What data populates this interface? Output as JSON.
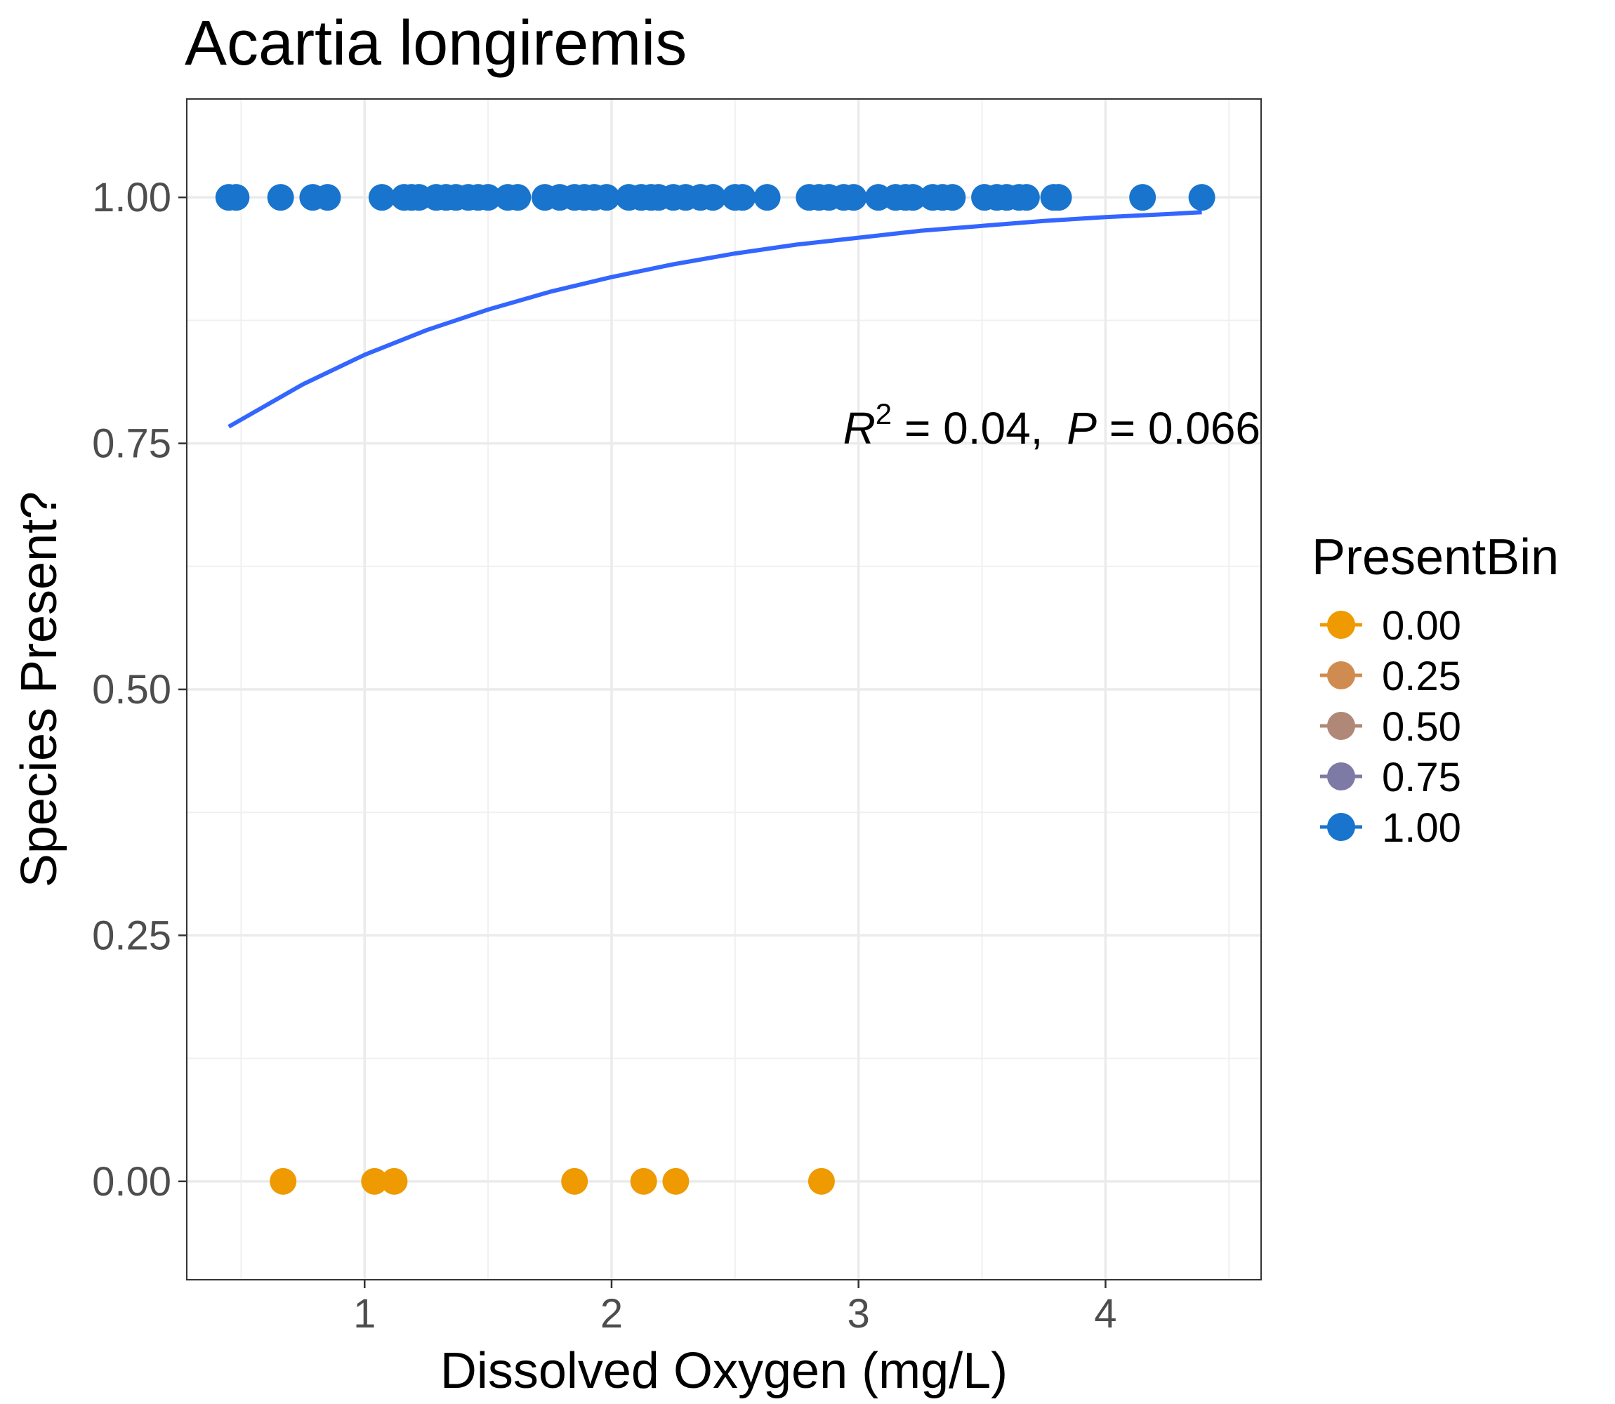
{
  "chart_data": {
    "type": "scatter",
    "title": "Acartia longiremis",
    "xlabel": "Dissolved Oxygen (mg/L)",
    "ylabel": "Species Present?",
    "xlim": [
      0.28,
      4.63
    ],
    "ylim": [
      -0.1,
      1.1
    ],
    "x_ticks": [
      1,
      2,
      3,
      4
    ],
    "x_tick_labels": [
      "1",
      "2",
      "3",
      "4"
    ],
    "y_ticks": [
      0,
      0.25,
      0.5,
      0.75,
      1.0
    ],
    "y_tick_labels": [
      "0.00",
      "0.25",
      "0.50",
      "0.75",
      "1.00"
    ],
    "grid": true,
    "legend": {
      "title": "PresentBin",
      "position": "right",
      "entries": [
        {
          "label": "0.00",
          "color": "#ee9a00"
        },
        {
          "label": "0.25",
          "color": "#d08c50"
        },
        {
          "label": "0.50",
          "color": "#b08878"
        },
        {
          "label": "0.75",
          "color": "#7e7aa6"
        },
        {
          "label": "1.00",
          "color": "#1874cd"
        }
      ]
    },
    "annotation": {
      "r2_symbol": "R",
      "r2_superscript": "2",
      "r2_value": " = 0.04,",
      "p_symbol": "P",
      "p_value": " = 0.066",
      "x": 3.75,
      "y": 0.745
    },
    "series": [
      {
        "present_bin": 1.0,
        "color": "#1874cd",
        "points": [
          {
            "x": 0.45,
            "y": 1
          },
          {
            "x": 0.48,
            "y": 1
          },
          {
            "x": 0.66,
            "y": 1
          },
          {
            "x": 0.79,
            "y": 1
          },
          {
            "x": 0.85,
            "y": 1
          },
          {
            "x": 1.07,
            "y": 1
          },
          {
            "x": 1.16,
            "y": 1
          },
          {
            "x": 1.19,
            "y": 1
          },
          {
            "x": 1.22,
            "y": 1
          },
          {
            "x": 1.29,
            "y": 1
          },
          {
            "x": 1.33,
            "y": 1
          },
          {
            "x": 1.37,
            "y": 1
          },
          {
            "x": 1.42,
            "y": 1
          },
          {
            "x": 1.46,
            "y": 1
          },
          {
            "x": 1.5,
            "y": 1
          },
          {
            "x": 1.58,
            "y": 1
          },
          {
            "x": 1.62,
            "y": 1
          },
          {
            "x": 1.73,
            "y": 1
          },
          {
            "x": 1.79,
            "y": 1
          },
          {
            "x": 1.85,
            "y": 1
          },
          {
            "x": 1.89,
            "y": 1
          },
          {
            "x": 1.93,
            "y": 1
          },
          {
            "x": 1.98,
            "y": 1
          },
          {
            "x": 2.07,
            "y": 1
          },
          {
            "x": 2.12,
            "y": 1
          },
          {
            "x": 2.16,
            "y": 1
          },
          {
            "x": 2.19,
            "y": 1
          },
          {
            "x": 2.25,
            "y": 1
          },
          {
            "x": 2.3,
            "y": 1
          },
          {
            "x": 2.36,
            "y": 1
          },
          {
            "x": 2.41,
            "y": 1
          },
          {
            "x": 2.5,
            "y": 1
          },
          {
            "x": 2.53,
            "y": 1
          },
          {
            "x": 2.63,
            "y": 1
          },
          {
            "x": 2.8,
            "y": 1
          },
          {
            "x": 2.84,
            "y": 1
          },
          {
            "x": 2.88,
            "y": 1
          },
          {
            "x": 2.94,
            "y": 1
          },
          {
            "x": 2.98,
            "y": 1
          },
          {
            "x": 3.08,
            "y": 1
          },
          {
            "x": 3.15,
            "y": 1
          },
          {
            "x": 3.19,
            "y": 1
          },
          {
            "x": 3.22,
            "y": 1
          },
          {
            "x": 3.3,
            "y": 1
          },
          {
            "x": 3.34,
            "y": 1
          },
          {
            "x": 3.38,
            "y": 1
          },
          {
            "x": 3.51,
            "y": 1
          },
          {
            "x": 3.56,
            "y": 1
          },
          {
            "x": 3.6,
            "y": 1
          },
          {
            "x": 3.65,
            "y": 1
          },
          {
            "x": 3.68,
            "y": 1
          },
          {
            "x": 3.79,
            "y": 1
          },
          {
            "x": 3.81,
            "y": 1
          },
          {
            "x": 4.15,
            "y": 1
          },
          {
            "x": 4.39,
            "y": 1
          }
        ]
      },
      {
        "present_bin": 0.0,
        "color": "#ee9a00",
        "points": [
          {
            "x": 0.67,
            "y": 0
          },
          {
            "x": 1.04,
            "y": 0
          },
          {
            "x": 1.12,
            "y": 0
          },
          {
            "x": 1.85,
            "y": 0
          },
          {
            "x": 2.13,
            "y": 0
          },
          {
            "x": 2.26,
            "y": 0
          },
          {
            "x": 2.85,
            "y": 0
          }
        ]
      }
    ],
    "fit_curve": {
      "color": "#3366ff",
      "x": [
        0.45,
        0.75,
        1.0,
        1.25,
        1.5,
        1.75,
        2.0,
        2.25,
        2.5,
        2.75,
        3.0,
        3.25,
        3.5,
        3.75,
        4.0,
        4.25,
        4.39
      ],
      "y": [
        0.767,
        0.81,
        0.84,
        0.865,
        0.886,
        0.904,
        0.919,
        0.932,
        0.943,
        0.952,
        0.959,
        0.966,
        0.971,
        0.976,
        0.98,
        0.983,
        0.985
      ]
    }
  }
}
